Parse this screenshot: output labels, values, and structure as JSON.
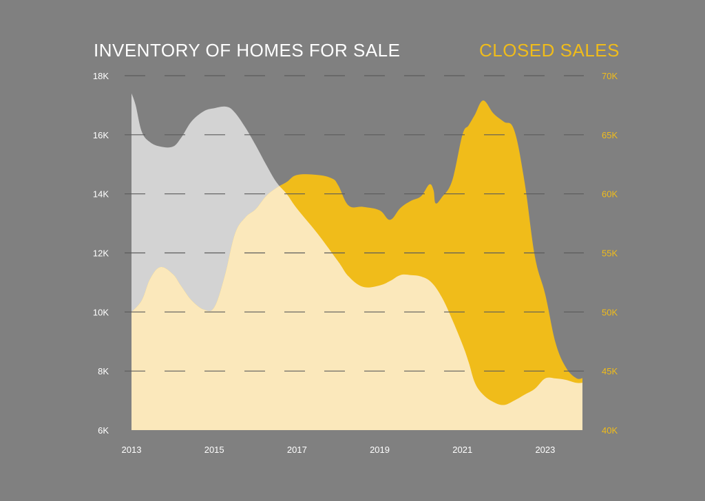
{
  "chart_data": {
    "type": "area",
    "title_left": "INVENTORY OF HOMES FOR SALE",
    "title_right": "CLOSED SALES",
    "colors": {
      "background": "#808080",
      "inventory_fill": "#d3d3d3",
      "sales_fill": "#f0bc1a",
      "overlap_fill": "#fbe8bb",
      "left_axis_text": "#ffffff",
      "right_axis_text": "#f0bc1a",
      "grid": "#5a5a5a"
    },
    "x_ticks": [
      "2013",
      "2015",
      "2017",
      "2019",
      "2021",
      "2023"
    ],
    "x_tick_values": [
      2013,
      2015,
      2017,
      2019,
      2021,
      2023
    ],
    "xlim": [
      2013,
      2023.9
    ],
    "y_left": {
      "ticks": [
        "18K",
        "16K",
        "14K",
        "12K",
        "10K",
        "8K",
        "6K"
      ],
      "tick_values": [
        18000,
        16000,
        14000,
        12000,
        10000,
        8000,
        6000
      ],
      "ylim": [
        6000,
        18000
      ]
    },
    "y_right": {
      "ticks": [
        "70K",
        "65K",
        "60K",
        "55K",
        "50K",
        "45K",
        "40K"
      ],
      "tick_values": [
        70000,
        65000,
        60000,
        55000,
        50000,
        45000,
        40000
      ],
      "ylim": [
        40000,
        70000
      ]
    },
    "grid": true,
    "series": [
      {
        "axis": "left",
        "x": [
          2013.0,
          2013.1,
          2013.25,
          2013.45,
          2013.7,
          2014.0,
          2014.2,
          2014.45,
          2014.75,
          2015.0,
          2015.3,
          2015.5,
          2015.75,
          2016.0,
          2016.25,
          2016.5,
          2016.75,
          2017.0,
          2017.5,
          2018.0,
          2018.25,
          2018.6,
          2019.0,
          2019.25,
          2019.5,
          2019.75,
          2020.0,
          2020.25,
          2020.5,
          2020.75,
          2021.0,
          2021.15,
          2021.3,
          2021.5,
          2021.75,
          2022.0,
          2022.25,
          2022.5,
          2022.75,
          2023.0,
          2023.25,
          2023.5,
          2023.75,
          2023.9
        ],
        "values": [
          17400,
          17000,
          16100,
          15750,
          15600,
          15600,
          15900,
          16450,
          16800,
          16900,
          16950,
          16750,
          16250,
          15650,
          15000,
          14400,
          14000,
          13500,
          12650,
          11700,
          11200,
          10850,
          10900,
          11050,
          11250,
          11250,
          11200,
          11000,
          10500,
          9750,
          8900,
          8300,
          7600,
          7200,
          6950,
          6850,
          7000,
          7200,
          7400,
          7750,
          7750,
          7700,
          7600,
          7600
        ]
      },
      {
        "axis": "right",
        "x": [
          2013.0,
          2013.25,
          2013.45,
          2013.7,
          2014.0,
          2014.2,
          2014.45,
          2014.75,
          2015.0,
          2015.25,
          2015.5,
          2015.75,
          2016.0,
          2016.25,
          2016.5,
          2016.75,
          2017.0,
          2017.5,
          2017.85,
          2018.0,
          2018.25,
          2018.6,
          2019.0,
          2019.25,
          2019.5,
          2019.75,
          2020.0,
          2020.2,
          2020.3,
          2020.35,
          2020.5,
          2020.75,
          2021.0,
          2021.15,
          2021.3,
          2021.5,
          2021.75,
          2022.0,
          2022.25,
          2022.5,
          2022.75,
          2023.0,
          2023.25,
          2023.5,
          2023.75,
          2023.9
        ],
        "values": [
          50000,
          51000,
          52800,
          53800,
          53200,
          52200,
          51000,
          50200,
          50400,
          53000,
          56600,
          58000,
          58700,
          59800,
          60500,
          61000,
          61600,
          61600,
          61300,
          60700,
          59000,
          58900,
          58600,
          57800,
          58800,
          59400,
          59800,
          60800,
          60300,
          59200,
          59700,
          61100,
          65000,
          65800,
          66700,
          67900,
          66800,
          66100,
          65400,
          61000,
          54700,
          51500,
          47400,
          45300,
          44400,
          44400
        ]
      }
    ]
  }
}
